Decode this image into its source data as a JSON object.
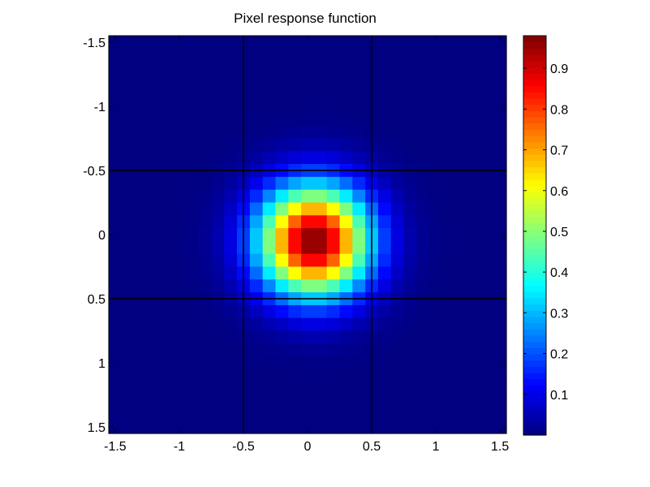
{
  "chart_data": {
    "type": "heatmap",
    "title": "Pixel response function",
    "xlabel": "",
    "ylabel": "",
    "grid_size": 31,
    "xlim": [
      -1.55,
      1.55
    ],
    "ylim": [
      -1.55,
      1.55
    ],
    "y_reversed": true,
    "x_ticks": [
      -1.5,
      -1,
      -0.5,
      0,
      0.5,
      1,
      1.5
    ],
    "y_ticks": [
      -1.5,
      -1,
      -0.5,
      0,
      0.5,
      1,
      1.5
    ],
    "x_tick_labels": [
      "-1.5",
      "-1",
      "-0.5",
      "0",
      "0.5",
      "1",
      "1.5"
    ],
    "y_tick_labels": [
      "-1.5",
      "-1",
      "-0.5",
      "0",
      "0.5",
      "1",
      "1.5"
    ],
    "peak": {
      "x": 0.05,
      "y": 0.05,
      "value": 0.98
    },
    "sigma": 0.3,
    "overlay_lines": {
      "vertical_x": [
        -0.5,
        0.5
      ],
      "horizontal_y": [
        -0.5,
        0.5
      ]
    },
    "colormap": "jet",
    "colorbar": {
      "range": [
        0,
        0.98
      ],
      "ticks": [
        0.1,
        0.2,
        0.3,
        0.4,
        0.5,
        0.6,
        0.7,
        0.8,
        0.9
      ],
      "tick_labels": [
        "0.1",
        "0.2",
        "0.3",
        "0.4",
        "0.5",
        "0.6",
        "0.7",
        "0.8",
        "0.9"
      ]
    },
    "grid": false
  }
}
